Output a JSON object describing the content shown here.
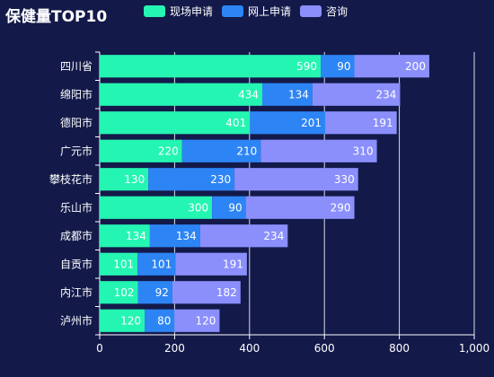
{
  "chart_data": {
    "type": "bar",
    "orientation": "horizontal",
    "stacked": true,
    "title": "保健量TOP10",
    "categories": [
      "四川省",
      "绵阳市",
      "德阳市",
      "广元市",
      "攀枝花市",
      "乐山市",
      "成都市",
      "自贡市",
      "内江市",
      "泸州市"
    ],
    "series": [
      {
        "name": "现场申请",
        "color": "#25f5b2",
        "values": [
          590,
          434,
          401,
          220,
          130,
          300,
          134,
          101,
          102,
          120
        ]
      },
      {
        "name": "网上申请",
        "color": "#2d85f5",
        "values": [
          90,
          134,
          201,
          210,
          230,
          90,
          134,
          101,
          92,
          80
        ]
      },
      {
        "name": "咨询",
        "color": "#8b8ffc",
        "values": [
          200,
          234,
          191,
          310,
          330,
          290,
          234,
          191,
          182,
          120
        ]
      }
    ],
    "xlim": [
      0,
      1000
    ],
    "xticks": [
      0,
      200,
      400,
      600,
      800,
      1000
    ],
    "xtick_labels": [
      "0",
      "200",
      "400",
      "600",
      "800",
      "1,000"
    ],
    "grid": true,
    "legend_position": "top"
  }
}
